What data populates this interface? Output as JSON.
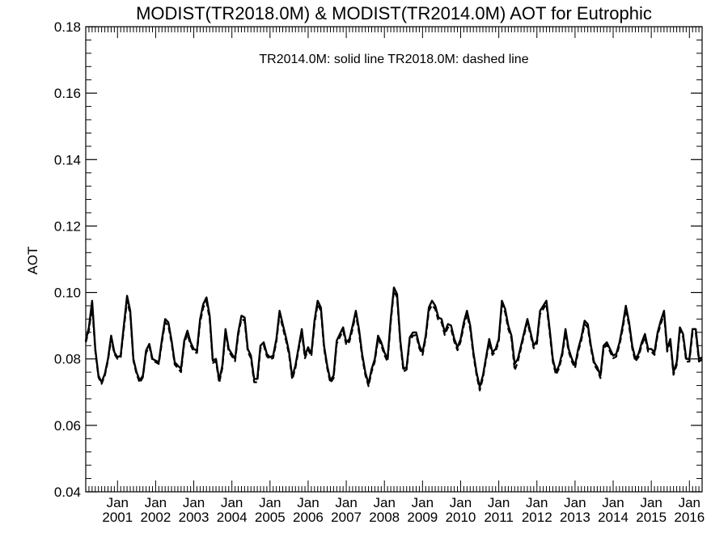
{
  "chart_data": {
    "type": "line",
    "title": "MODIST(TR2018.0M) & MODIST(TR2014.0M)  AOT for Eutrophic",
    "annotation": "TR2014.0M: solid line   TR2018.0M: dashed line",
    "xlabel": "",
    "ylabel": "AOT",
    "ylim": [
      0.04,
      0.18
    ],
    "yticks": [
      "0.04",
      "0.06",
      "0.08",
      "0.10",
      "0.12",
      "0.14",
      "0.16",
      "0.18"
    ],
    "xticks": [
      {
        "month": "Jan",
        "year": "2001"
      },
      {
        "month": "Jan",
        "year": "2002"
      },
      {
        "month": "Jan",
        "year": "2003"
      },
      {
        "month": "Jan",
        "year": "2004"
      },
      {
        "month": "Jan",
        "year": "2005"
      },
      {
        "month": "Jan",
        "year": "2006"
      },
      {
        "month": "Jan",
        "year": "2007"
      },
      {
        "month": "Jan",
        "year": "2008"
      },
      {
        "month": "Jan",
        "year": "2009"
      },
      {
        "month": "Jan",
        "year": "2010"
      },
      {
        "month": "Jan",
        "year": "2011"
      },
      {
        "month": "Jan",
        "year": "2012"
      },
      {
        "month": "Jan",
        "year": "2013"
      },
      {
        "month": "Jan",
        "year": "2014"
      },
      {
        "month": "Jan",
        "year": "2015"
      },
      {
        "month": "Jan",
        "year": "2016"
      }
    ],
    "xlim": [
      "2000-03",
      "2016-05"
    ],
    "grid": false,
    "x": [
      "2000-03",
      "2000-04",
      "2000-05",
      "2000-06",
      "2000-07",
      "2000-08",
      "2000-09",
      "2000-10",
      "2000-11",
      "2000-12",
      "2001-01",
      "2001-02",
      "2001-03",
      "2001-04",
      "2001-05",
      "2001-06",
      "2001-07",
      "2001-08",
      "2001-09",
      "2001-10",
      "2001-11",
      "2001-12",
      "2002-01",
      "2002-02",
      "2002-03",
      "2002-04",
      "2002-05",
      "2002-06",
      "2002-07",
      "2002-08",
      "2002-09",
      "2002-10",
      "2002-11",
      "2002-12",
      "2003-01",
      "2003-02",
      "2003-03",
      "2003-04",
      "2003-05",
      "2003-06",
      "2003-07",
      "2003-08",
      "2003-09",
      "2003-10",
      "2003-11",
      "2003-12",
      "2004-01",
      "2004-02",
      "2004-03",
      "2004-04",
      "2004-05",
      "2004-06",
      "2004-07",
      "2004-08",
      "2004-09",
      "2004-10",
      "2004-11",
      "2004-12",
      "2005-01",
      "2005-02",
      "2005-03",
      "2005-04",
      "2005-05",
      "2005-06",
      "2005-07",
      "2005-08",
      "2005-09",
      "2005-10",
      "2005-11",
      "2005-12",
      "2006-01",
      "2006-02",
      "2006-03",
      "2006-04",
      "2006-05",
      "2006-06",
      "2006-07",
      "2006-08",
      "2006-09",
      "2006-10",
      "2006-11",
      "2006-12",
      "2007-01",
      "2007-02",
      "2007-03",
      "2007-04",
      "2007-05",
      "2007-06",
      "2007-07",
      "2007-08",
      "2007-09",
      "2007-10",
      "2007-11",
      "2007-12",
      "2008-01",
      "2008-02",
      "2008-03",
      "2008-04",
      "2008-05",
      "2008-06",
      "2008-07",
      "2008-08",
      "2008-09",
      "2008-10",
      "2008-11",
      "2008-12",
      "2009-01",
      "2009-02",
      "2009-03",
      "2009-04",
      "2009-05",
      "2009-06",
      "2009-07",
      "2009-08",
      "2009-09",
      "2009-10",
      "2009-11",
      "2009-12",
      "2010-01",
      "2010-02",
      "2010-03",
      "2010-04",
      "2010-05",
      "2010-06",
      "2010-07",
      "2010-08",
      "2010-09",
      "2010-10",
      "2010-11",
      "2010-12",
      "2011-01",
      "2011-02",
      "2011-03",
      "2011-04",
      "2011-05",
      "2011-06",
      "2011-07",
      "2011-08",
      "2011-09",
      "2011-10",
      "2011-11",
      "2011-12",
      "2012-01",
      "2012-02",
      "2012-03",
      "2012-04",
      "2012-05",
      "2012-06",
      "2012-07",
      "2012-08",
      "2012-09",
      "2012-10",
      "2012-11",
      "2012-12",
      "2013-01",
      "2013-02",
      "2013-03",
      "2013-04",
      "2013-05",
      "2013-06",
      "2013-07",
      "2013-08",
      "2013-09",
      "2013-10",
      "2013-11",
      "2013-12",
      "2014-01",
      "2014-02",
      "2014-03",
      "2014-04",
      "2014-05",
      "2014-06",
      "2014-07",
      "2014-08",
      "2014-09",
      "2014-10",
      "2014-11",
      "2014-12",
      "2015-01",
      "2015-02",
      "2015-03",
      "2015-04",
      "2015-05",
      "2015-06",
      "2015-07",
      "2015-08",
      "2015-09",
      "2015-10",
      "2015-11",
      "2015-12",
      "2016-01",
      "2016-02",
      "2016-03",
      "2016-04",
      "2016-05"
    ],
    "series": [
      {
        "name": "TR2014.0M",
        "style": "solid",
        "values": [
          0.0855,
          0.0895,
          0.0975,
          0.083,
          0.075,
          0.073,
          0.0755,
          0.08,
          0.087,
          0.082,
          0.0805,
          0.081,
          0.09,
          0.099,
          0.0945,
          0.08,
          0.076,
          0.0735,
          0.075,
          0.0825,
          0.0845,
          0.08,
          0.0795,
          0.079,
          0.086,
          0.092,
          0.091,
          0.0855,
          0.079,
          0.078,
          0.077,
          0.0855,
          0.0885,
          0.085,
          0.083,
          0.0825,
          0.092,
          0.0965,
          0.0985,
          0.093,
          0.0795,
          0.08,
          0.0735,
          0.078,
          0.089,
          0.083,
          0.0815,
          0.08,
          0.088,
          0.093,
          0.0925,
          0.083,
          0.081,
          0.074,
          0.074,
          0.084,
          0.085,
          0.0815,
          0.0805,
          0.081,
          0.086,
          0.0945,
          0.0905,
          0.0865,
          0.082,
          0.0745,
          0.078,
          0.0835,
          0.089,
          0.081,
          0.0835,
          0.0815,
          0.0915,
          0.0975,
          0.0955,
          0.084,
          0.078,
          0.0735,
          0.075,
          0.0855,
          0.0875,
          0.0895,
          0.085,
          0.086,
          0.09,
          0.0945,
          0.089,
          0.0815,
          0.076,
          0.0725,
          0.077,
          0.08,
          0.087,
          0.085,
          0.082,
          0.08,
          0.092,
          0.1015,
          0.0995,
          0.0855,
          0.077,
          0.0775,
          0.0865,
          0.088,
          0.088,
          0.084,
          0.082,
          0.087,
          0.0955,
          0.0975,
          0.096,
          0.0925,
          0.092,
          0.088,
          0.0905,
          0.09,
          0.086,
          0.0835,
          0.086,
          0.091,
          0.0945,
          0.09,
          0.082,
          0.076,
          0.0715,
          0.075,
          0.0805,
          0.086,
          0.082,
          0.083,
          0.086,
          0.0975,
          0.095,
          0.09,
          0.087,
          0.0785,
          0.08,
          0.084,
          0.088,
          0.092,
          0.088,
          0.084,
          0.0855,
          0.0945,
          0.096,
          0.0975,
          0.089,
          0.08,
          0.076,
          0.078,
          0.082,
          0.089,
          0.083,
          0.08,
          0.078,
          0.083,
          0.0865,
          0.0915,
          0.0905,
          0.084,
          0.079,
          0.0775,
          0.075,
          0.084,
          0.085,
          0.083,
          0.081,
          0.0815,
          0.085,
          0.09,
          0.096,
          0.091,
          0.084,
          0.08,
          0.0815,
          0.085,
          0.0875,
          0.083,
          0.083,
          0.082,
          0.088,
          0.0915,
          0.0945,
          0.083,
          0.086,
          0.076,
          0.079,
          0.0895,
          0.0875,
          0.08,
          0.08,
          0.089,
          0.089,
          0.08,
          0.0805
        ]
      },
      {
        "name": "TR2018.0M",
        "style": "dashed",
        "values": [
          0.085,
          0.0885,
          0.096,
          0.0825,
          0.0745,
          0.0725,
          0.075,
          0.0795,
          0.086,
          0.0815,
          0.08,
          0.0805,
          0.089,
          0.0975,
          0.0935,
          0.0795,
          0.0755,
          0.0728,
          0.0745,
          0.0818,
          0.0838,
          0.0795,
          0.079,
          0.0785,
          0.0852,
          0.091,
          0.09,
          0.0848,
          0.0783,
          0.0772,
          0.076,
          0.0848,
          0.0875,
          0.0842,
          0.0822,
          0.0818,
          0.091,
          0.0955,
          0.0972,
          0.092,
          0.0788,
          0.0793,
          0.0728,
          0.0772,
          0.088,
          0.0822,
          0.0808,
          0.0793,
          0.0872,
          0.092,
          0.0915,
          0.0822,
          0.0802,
          0.073,
          0.073,
          0.0832,
          0.0842,
          0.0808,
          0.0798,
          0.0803,
          0.0852,
          0.0935,
          0.0895,
          0.0856,
          0.0812,
          0.0738,
          0.0772,
          0.0828,
          0.088,
          0.0802,
          0.0828,
          0.0808,
          0.0905,
          0.0965,
          0.0945,
          0.0832,
          0.0772,
          0.0728,
          0.0742,
          0.0846,
          0.0866,
          0.0885,
          0.0842,
          0.0852,
          0.089,
          0.0935,
          0.088,
          0.0806,
          0.0752,
          0.0718,
          0.0762,
          0.0792,
          0.086,
          0.0842,
          0.0812,
          0.0792,
          0.091,
          0.1005,
          0.0985,
          0.0846,
          0.0762,
          0.0768,
          0.0856,
          0.087,
          0.0872,
          0.0832,
          0.0812,
          0.0862,
          0.0945,
          0.0962,
          0.095,
          0.0915,
          0.091,
          0.0872,
          0.0895,
          0.089,
          0.0852,
          0.0826,
          0.0852,
          0.09,
          0.0935,
          0.089,
          0.0812,
          0.0752,
          0.0705,
          0.0742,
          0.0798,
          0.085,
          0.0812,
          0.0822,
          0.0852,
          0.0965,
          0.094,
          0.089,
          0.0862,
          0.0765,
          0.0792,
          0.0832,
          0.0872,
          0.091,
          0.0872,
          0.0832,
          0.0846,
          0.0935,
          0.095,
          0.0965,
          0.088,
          0.0792,
          0.0752,
          0.0772,
          0.0812,
          0.088,
          0.0822,
          0.0792,
          0.0772,
          0.0822,
          0.0856,
          0.0905,
          0.0895,
          0.0832,
          0.0782,
          0.0768,
          0.0742,
          0.0832,
          0.0842,
          0.0822,
          0.0802,
          0.0807,
          0.0842,
          0.089,
          0.095,
          0.09,
          0.0832,
          0.0792,
          0.0806,
          0.0842,
          0.0866,
          0.0822,
          0.0822,
          0.0812,
          0.0872,
          0.0905,
          0.0935,
          0.0822,
          0.0852,
          0.0752,
          0.0782,
          0.0885,
          0.0866,
          0.0792,
          0.0792,
          0.088,
          0.088,
          0.0792,
          0.0798
        ]
      }
    ]
  }
}
